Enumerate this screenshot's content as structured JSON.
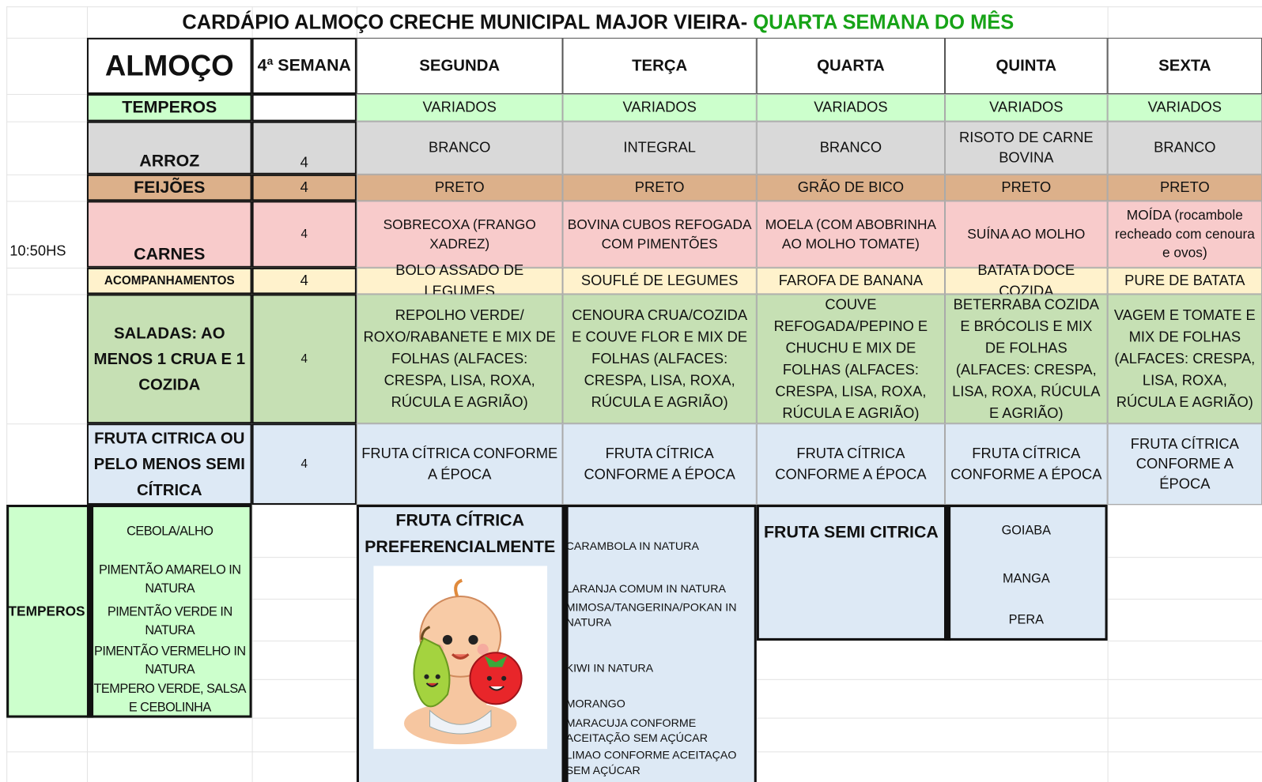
{
  "title": {
    "main": "CARDÁPIO ALMOÇO CRECHE MUNICIPAL MAJOR VIEIRA-",
    "highlight": "QUARTA SEMANA DO MÊS"
  },
  "time": "10:50HS",
  "header": {
    "meal": "ALMOÇO",
    "week": "4ª SEMANA",
    "days": [
      "SEGUNDA",
      "TERÇA",
      "QUARTA",
      "QUINTA",
      "SEXTA"
    ]
  },
  "rows": [
    {
      "label": "TEMPEROS",
      "cells": [
        "VARIADOS",
        "VARIADOS",
        "VARIADOS",
        "VARIADOS",
        "VARIADOS"
      ]
    },
    {
      "label": "ARROZ",
      "week": 4,
      "cells": [
        "BRANCO",
        "INTEGRAL",
        "BRANCO",
        "RISOTO DE CARNE BOVINA",
        "BRANCO"
      ]
    },
    {
      "label": "FEIJÕES",
      "week": 4,
      "cells": [
        "PRETO",
        "PRETO",
        "GRÃO DE BICO",
        "PRETO",
        "PRETO"
      ]
    },
    {
      "label": "CARNES",
      "week": 4,
      "cells": [
        "SOBRECOXA (FRANGO XADREZ)",
        "BOVINA CUBOS REFOGADA COM PIMENTÕES",
        "MOELA (COM ABOBRINHA AO MOLHO TOMATE)",
        "SUÍNA AO MOLHO",
        "MOÍDA (rocambole recheado com cenoura e ovos)"
      ]
    },
    {
      "label": "ACOMPANHAMENTOS",
      "week": 4,
      "cells": [
        "BOLO ASSADO DE LEGUMES",
        "SOUFLÉ DE LEGUMES",
        "FAROFA DE BANANA",
        "BATATA DOCE COZIDA",
        "PURE DE BATATA"
      ]
    },
    {
      "label": "SALADAS: AO MENOS 1 CRUA E 1 COZIDA",
      "week": 4,
      "cells": [
        "REPOLHO VERDE/ ROXO/RABANETE E MIX DE FOLHAS (ALFACES: CRESPA, LISA, ROXA, RÚCULA E AGRIÃO)",
        "CENOURA CRUA/COZIDA E COUVE FLOR E MIX DE FOLHAS (ALFACES: CRESPA, LISA, ROXA, RÚCULA E AGRIÃO)",
        "COUVE REFOGADA/PEPINO E CHUCHU E MIX DE FOLHAS (ALFACES: CRESPA, LISA, ROXA, RÚCULA E AGRIÃO)",
        "BETERRABA COZIDA E BRÓCOLIS E MIX DE FOLHAS (ALFACES: CRESPA, LISA, ROXA, RÚCULA E AGRIÃO)",
        "VAGEM E TOMATE E MIX DE FOLHAS (ALFACES: CRESPA, LISA, ROXA, RÚCULA E AGRIÃO)"
      ]
    },
    {
      "label": "FRUTA CITRICA OU PELO MENOS SEMI CÍTRICA",
      "week": 4,
      "cells": [
        "FRUTA CÍTRICA CONFORME A ÉPOCA",
        "FRUTA CÍTRICA CONFORME A ÉPOCA",
        "FRUTA CÍTRICA CONFORME A ÉPOCA",
        "FRUTA CÍTRICA CONFORME A ÉPOCA",
        "FRUTA CÍTRICA CONFORME A ÉPOCA"
      ]
    }
  ],
  "seasonings": {
    "label": "TEMPEROS",
    "items": [
      "CEBOLA/ALHO",
      "PIMENTÃO AMARELO IN NATURA",
      "PIMENTÃO VERDE IN NATURA",
      "PIMENTÃO VERMELHO IN NATURA",
      "TEMPERO VERDE, SALSA E CEBOLINHA"
    ]
  },
  "citrus": {
    "title": "FRUTA CÍTRICA PREFERENCIALMENTE",
    "items": [
      "CARAMBOLA IN NATURA",
      "LARANJA COMUM IN NATURA",
      "MIMOSA/TANGERINA/POKAN IN NATURA",
      "KIWI IN NATURA",
      "MORANGO",
      "MARACUJA CONFORME ACEITAÇÃO SEM AÇÚCAR",
      "LIMAO CONFORME ACEITAÇAO SEM AÇÚCAR"
    ]
  },
  "semi_citrus": {
    "title": "FRUTA SEMI CITRICA",
    "items": [
      "GOIABA",
      "MANGA",
      "PERA"
    ]
  }
}
